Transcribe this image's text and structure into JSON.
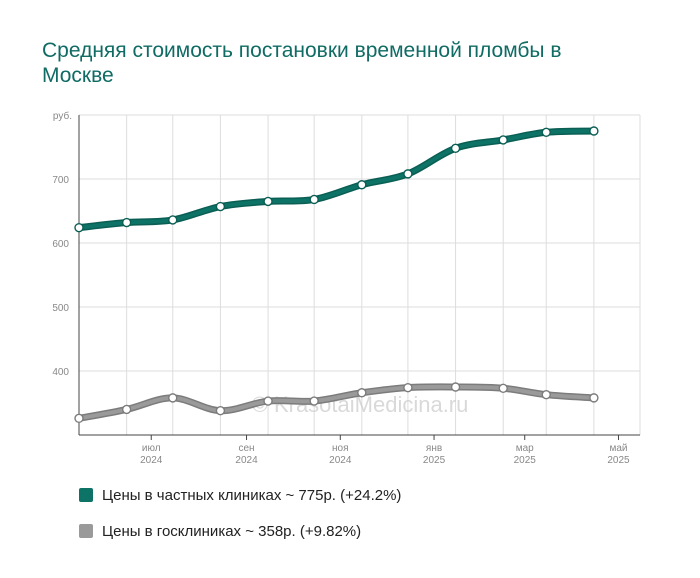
{
  "title": "Средняя стоимость постановки временной пломбы в Москве",
  "colors": {
    "title": "#0f6b64",
    "private": "#0d7366",
    "private_dark": "#0a5e54",
    "public": "#9a9a9a",
    "public_dark": "#7c7c7c",
    "grid": "#dddddd",
    "tick_text": "#888888"
  },
  "watermark": "© KrasotaiMedicina.ru",
  "chart_data": {
    "type": "line",
    "title": "Средняя стоимость постановки временной пломбы в Москве",
    "y_unit": "руб.",
    "ylim": [
      300,
      800
    ],
    "yticks": [
      400,
      500,
      600,
      700
    ],
    "x_range": [
      "2024-05-15",
      "2025-05-15"
    ],
    "x_ticks": [
      {
        "date": "2024-07-01",
        "month": "июл",
        "year": "2024"
      },
      {
        "date": "2024-09-01",
        "month": "сен",
        "year": "2024"
      },
      {
        "date": "2024-11-01",
        "month": "ноя",
        "year": "2024"
      },
      {
        "date": "2025-01-01",
        "month": "янв",
        "year": "2025"
      },
      {
        "date": "2025-03-01",
        "month": "мар",
        "year": "2025"
      },
      {
        "date": "2025-05-01",
        "month": "май",
        "year": "2025"
      }
    ],
    "grid": true,
    "series": [
      {
        "name": "Цены в частных клиниках ~ 775р. (+24.2%)",
        "color": "#0d7366",
        "points": [
          {
            "x": "2024-05-15",
            "y": 624
          },
          {
            "x": "2024-06-15",
            "y": 632
          },
          {
            "x": "2024-07-15",
            "y": 636
          },
          {
            "x": "2024-08-15",
            "y": 657
          },
          {
            "x": "2024-09-15",
            "y": 665
          },
          {
            "x": "2024-10-15",
            "y": 668
          },
          {
            "x": "2024-11-15",
            "y": 691
          },
          {
            "x": "2024-12-15",
            "y": 708
          },
          {
            "x": "2025-01-15",
            "y": 748
          },
          {
            "x": "2025-02-15",
            "y": 761
          },
          {
            "x": "2025-03-15",
            "y": 773
          },
          {
            "x": "2025-04-15",
            "y": 775
          }
        ]
      },
      {
        "name": "Цены в госклиниках ~ 358р. (+9.82%)",
        "color": "#9a9a9a",
        "points": [
          {
            "x": "2024-05-15",
            "y": 326
          },
          {
            "x": "2024-06-15",
            "y": 340
          },
          {
            "x": "2024-07-15",
            "y": 358
          },
          {
            "x": "2024-08-15",
            "y": 338
          },
          {
            "x": "2024-09-15",
            "y": 353
          },
          {
            "x": "2024-10-15",
            "y": 353
          },
          {
            "x": "2024-11-15",
            "y": 366
          },
          {
            "x": "2024-12-15",
            "y": 374
          },
          {
            "x": "2025-01-15",
            "y": 375
          },
          {
            "x": "2025-02-15",
            "y": 373
          },
          {
            "x": "2025-03-15",
            "y": 363
          },
          {
            "x": "2025-04-15",
            "y": 358
          }
        ]
      }
    ]
  }
}
